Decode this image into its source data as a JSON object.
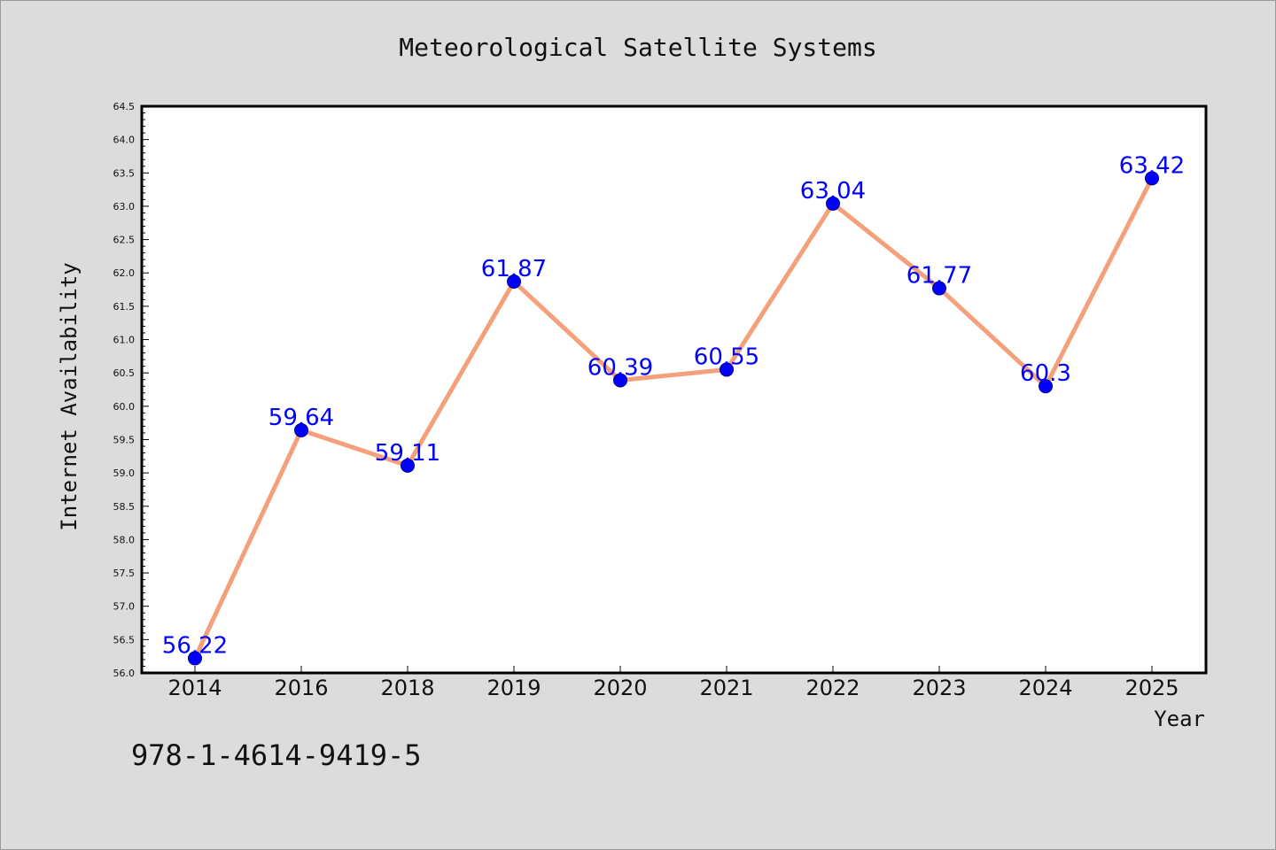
{
  "footnote": "978-1-4614-9419-5",
  "chart_data": {
    "type": "line",
    "title": "Meteorological Satellite Systems",
    "xlabel": "Year",
    "ylabel": "Internet Availability",
    "categories": [
      "2014",
      "2016",
      "2018",
      "2019",
      "2020",
      "2021",
      "2022",
      "2023",
      "2024",
      "2025"
    ],
    "series": [
      {
        "values": [
          56.22,
          59.64,
          59.11,
          61.87,
          60.39,
          60.55,
          63.04,
          61.77,
          60.3,
          63.42
        ],
        "data_labels": [
          "56.22",
          "59.64",
          "59.11",
          "61.87",
          "60.39",
          "60.55",
          "63.04",
          "61.77",
          "60.3",
          "63.42"
        ],
        "line_color": "#f4a07a",
        "marker_color": "#0000ff"
      }
    ],
    "ylim": [
      56.0,
      64.5
    ],
    "yticks": [
      "56.0",
      "56.5",
      "57.0",
      "57.5",
      "58.0",
      "58.5",
      "59.0",
      "59.5",
      "60.0",
      "60.5",
      "61.0",
      "61.5",
      "62.0",
      "62.5",
      "63.0",
      "63.5",
      "64.0",
      "64.5"
    ],
    "grid": false,
    "legend": "none",
    "colors": {
      "background": "#dcdcdc",
      "plot_background": "#ffffff",
      "data_label": "#0000ff"
    }
  }
}
